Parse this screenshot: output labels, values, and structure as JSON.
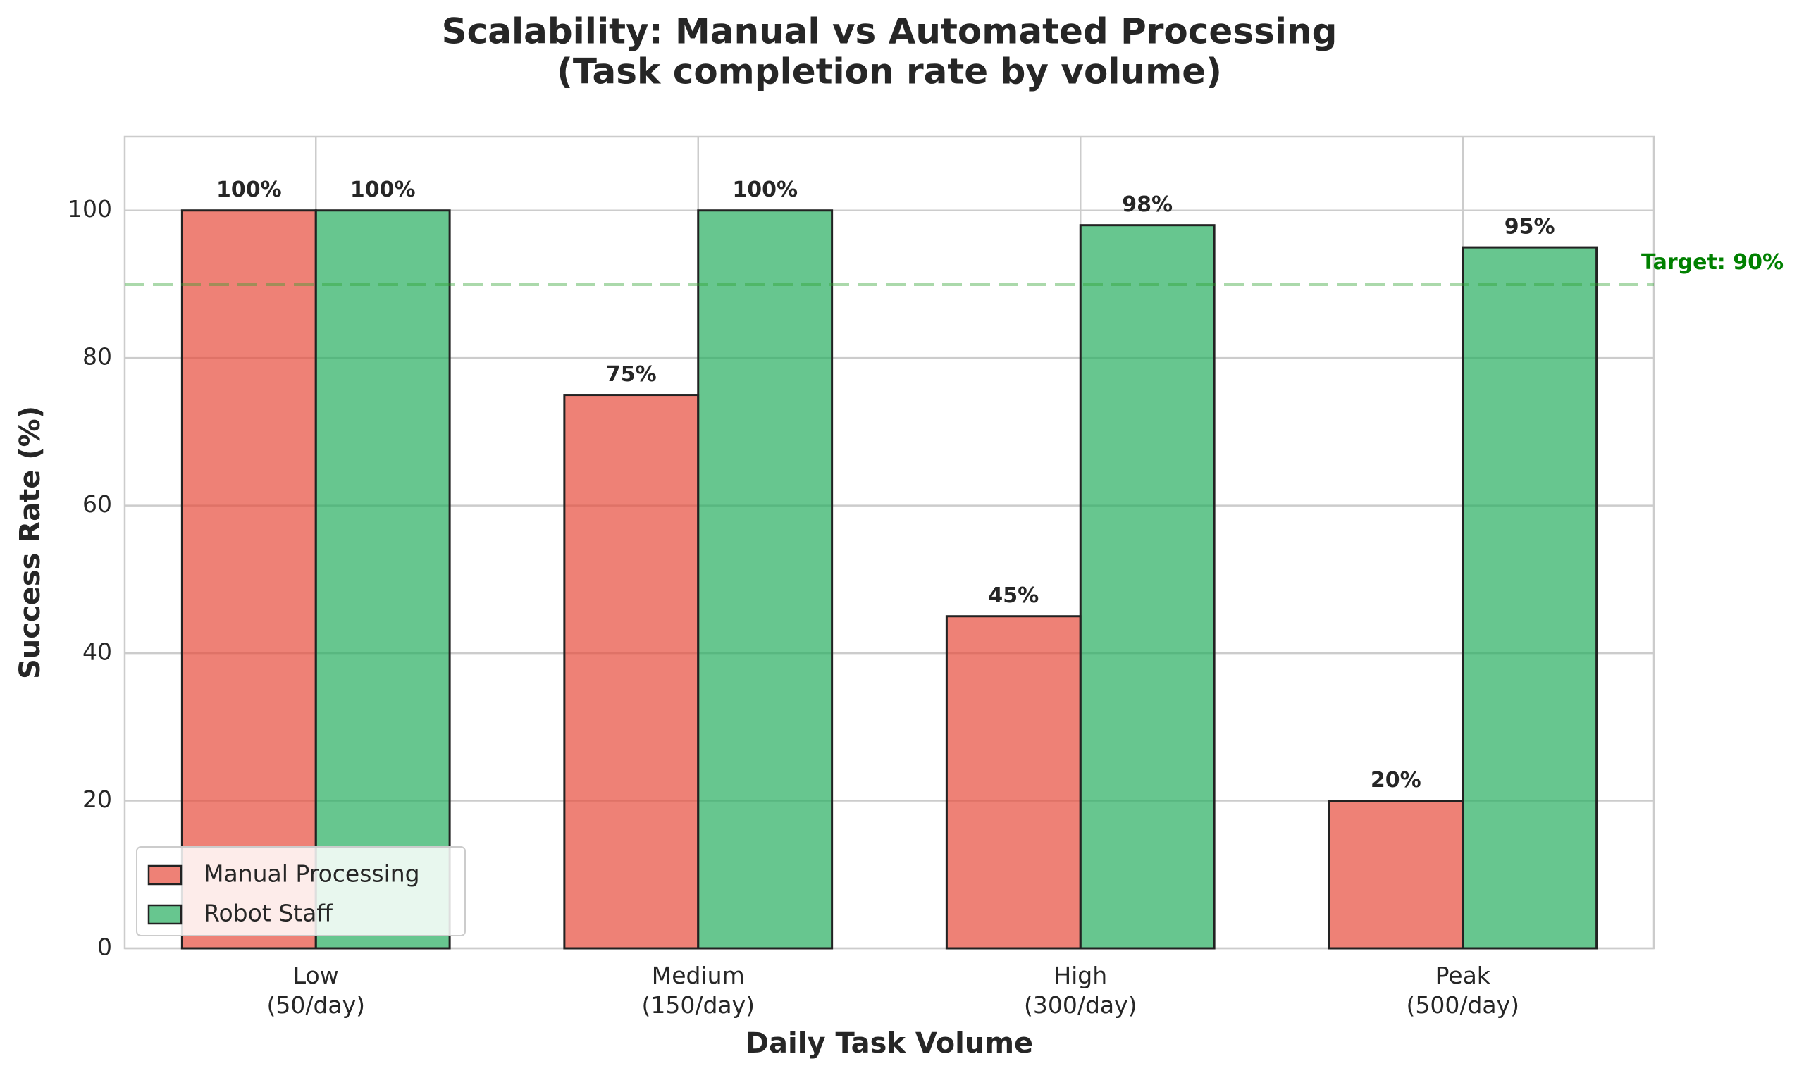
{
  "chart_data": {
    "type": "bar",
    "title": "Scalability: Manual vs Automated Processing",
    "subtitle": "(Task completion rate by volume)",
    "x_label": "Daily Task Volume",
    "y_label": "Success Rate (%)",
    "categories": [
      "Low\n(50/day)",
      "Medium\n(150/day)",
      "High\n(300/day)",
      "Peak\n(500/day)"
    ],
    "series": [
      {
        "name": "Manual Processing",
        "color": "#e74c3c",
        "values": [
          100,
          75,
          45,
          20
        ],
        "value_labels": [
          "100%",
          "75%",
          "45%",
          "20%"
        ]
      },
      {
        "name": "Robot Staff",
        "color": "#27ae60",
        "values": [
          100,
          100,
          98,
          95
        ],
        "value_labels": [
          "100%",
          "100%",
          "98%",
          "95%"
        ]
      }
    ],
    "target": {
      "value": 90,
      "label": "Target: 90%",
      "color": "#2ca02c"
    },
    "ylim": [
      0,
      110
    ],
    "yticks": [
      0,
      20,
      40,
      60,
      80,
      100
    ],
    "grid": true,
    "legend": "lower left"
  }
}
